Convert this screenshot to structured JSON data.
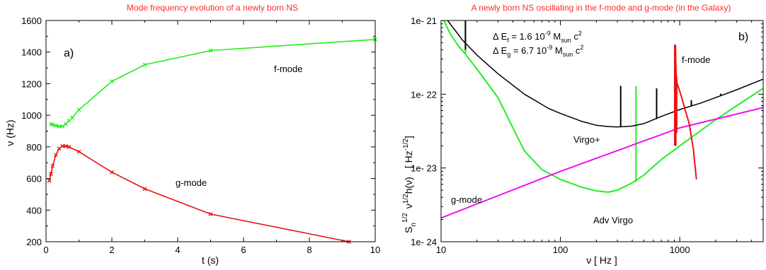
{
  "chart_data": [
    {
      "type": "line",
      "title": "Mode frequency evolution of a newly born NS",
      "panel_label": "a)",
      "xlabel": "t (s)",
      "ylabel": "ν (Hz)",
      "xlim": [
        0,
        10
      ],
      "ylim": [
        200,
        1600
      ],
      "x_ticks": [
        "0",
        "2",
        "4",
        "6",
        "8",
        "10"
      ],
      "y_ticks": [
        "200",
        "400",
        "600",
        "800",
        "1000",
        "1200",
        "1400",
        "1600"
      ],
      "grid": false,
      "series": [
        {
          "name": "f-mode",
          "color": "#22ee22",
          "marker": "x",
          "points": [
            [
              0.15,
              945
            ],
            [
              0.2,
              940
            ],
            [
              0.3,
              935
            ],
            [
              0.4,
              930
            ],
            [
              0.5,
              930
            ],
            [
              0.6,
              945
            ],
            [
              0.7,
              965
            ],
            [
              0.8,
              985
            ],
            [
              1.0,
              1035
            ],
            [
              2.0,
              1215
            ],
            [
              3.0,
              1320
            ],
            [
              5.0,
              1410
            ],
            [
              10.0,
              1480
            ]
          ]
        },
        {
          "name": "g-mode",
          "color": "#ee1111",
          "marker": "x",
          "points": [
            [
              0.1,
              585
            ],
            [
              0.15,
              630
            ],
            [
              0.2,
              680
            ],
            [
              0.3,
              750
            ],
            [
              0.4,
              790
            ],
            [
              0.5,
              805
            ],
            [
              0.6,
              805
            ],
            [
              0.7,
              800
            ],
            [
              1.0,
              770
            ],
            [
              2.0,
              640
            ],
            [
              3.0,
              535
            ],
            [
              5.0,
              375
            ],
            [
              9.2,
              200
            ]
          ]
        }
      ]
    },
    {
      "type": "line",
      "title": "A newly born NS oscillating in the f-mode and g-mode (in the Galaxy)",
      "panel_label": "b)",
      "xlabel": "ν [ Hz ]",
      "ylabel_parts": {
        "s": "S",
        "n": "n",
        "half1": "1/2",
        "nu": "ν",
        "half2": "1/2",
        "h": "h(ν)",
        "unit": "[ Hz",
        "unit_exp": "-1/2",
        "unit_end": "]"
      },
      "x_scale": "log",
      "y_scale": "log",
      "xlim": [
        10,
        5000
      ],
      "ylim": [
        1e-24,
        1e-21
      ],
      "x_ticks": [
        "10",
        "100",
        "1000"
      ],
      "y_ticks": [
        "1e- 24",
        "1e- 23",
        "1e- 22",
        "1e- 21"
      ],
      "grid": false,
      "energy_f": {
        "prefix": "Δ E",
        "sub": "f",
        "eq": " = 1.6 10",
        "exp": "-9",
        "m": " M",
        "msub": "sun",
        "c": " c",
        "cexp": "2"
      },
      "energy_g": {
        "prefix": "Δ E",
        "sub": "g",
        "eq": " = 6.7 10",
        "exp": "-9",
        "m": " M",
        "msub": "sun",
        "c": " c",
        "cexp": "2"
      },
      "series": [
        {
          "name": "Virgo+",
          "color": "#000000",
          "points": [
            [
              10,
              1.3e-21
            ],
            [
              13,
              7.5e-22
            ],
            [
              15,
              5.5e-22
            ],
            [
              20,
              3.4e-22
            ],
            [
              30,
              1.9e-22
            ],
            [
              50,
              1e-22
            ],
            [
              80,
              6.4e-23
            ],
            [
              100,
              5.5e-23
            ],
            [
              150,
              4.3e-23
            ],
            [
              200,
              3.8e-23
            ],
            [
              250,
              3.65e-23
            ],
            [
              300,
              3.6e-23
            ],
            [
              400,
              3.7e-23
            ],
            [
              500,
              4e-23
            ],
            [
              700,
              5e-23
            ],
            [
              1000,
              6.2e-23
            ],
            [
              1500,
              7.6e-23
            ],
            [
              2000,
              9e-23
            ],
            [
              3000,
              1.15e-22
            ],
            [
              5000,
              1.6e-22
            ]
          ],
          "lines": [
            [
              16,
              4e-22,
              1e-21
            ],
            [
              320,
              3.6e-23,
              1.3e-22
            ],
            [
              640,
              4.6e-23,
              1.2e-22
            ],
            [
              1250,
              7e-23,
              8.3e-23
            ],
            [
              2200,
              9.5e-23,
              1.02e-22
            ]
          ]
        },
        {
          "name": "Adv Virgo",
          "color": "#22ee22",
          "points": [
            [
              10,
              1.2e-21
            ],
            [
              12,
              6.5e-22
            ],
            [
              14,
              4.5e-22
            ],
            [
              16,
              3.5e-22
            ],
            [
              20,
              2.2e-22
            ],
            [
              30,
              9e-23
            ],
            [
              40,
              3.5e-23
            ],
            [
              50,
              1.7e-23
            ],
            [
              70,
              9.5e-24
            ],
            [
              100,
              7e-24
            ],
            [
              150,
              5.5e-24
            ],
            [
              200,
              4.9e-24
            ],
            [
              250,
              4.7e-24
            ],
            [
              300,
              5e-24
            ],
            [
              400,
              6.3e-24
            ],
            [
              500,
              8e-24
            ],
            [
              700,
              1.3e-23
            ],
            [
              1000,
              2e-23
            ],
            [
              2000,
              4.5e-23
            ],
            [
              3000,
              7e-23
            ],
            [
              5000,
              1.2e-22
            ]
          ],
          "lines": [
            [
              16,
              3.5e-22,
              1e-21
            ],
            [
              430,
              6.5e-24,
              1.3e-22
            ]
          ]
        },
        {
          "name": "g-mode",
          "color": "#ee11ee",
          "points": [
            [
              10,
              2.1e-24
            ],
            [
              100,
              9e-24
            ],
            [
              1000,
              3.5e-23
            ],
            [
              5000,
              6.6e-23
            ]
          ]
        },
        {
          "name": "f-mode",
          "color": "#ee1111",
          "points": [
            [
              920,
              4.7e-22
            ],
            [
              930,
              2e-22
            ],
            [
              950,
              1.4e-22
            ],
            [
              1000,
              1.1e-22
            ],
            [
              1050,
              8.5e-23
            ],
            [
              1100,
              6.5e-23
            ],
            [
              1200,
              4e-23
            ],
            [
              1300,
              1.8e-23
            ],
            [
              1380,
              7e-24
            ]
          ],
          "lines": [
            [
              910,
              2e-23,
              4.7e-22
            ],
            [
              925,
              2e-23,
              2e-22
            ],
            [
              940,
              3e-23,
              1.6e-22
            ]
          ]
        }
      ]
    }
  ]
}
